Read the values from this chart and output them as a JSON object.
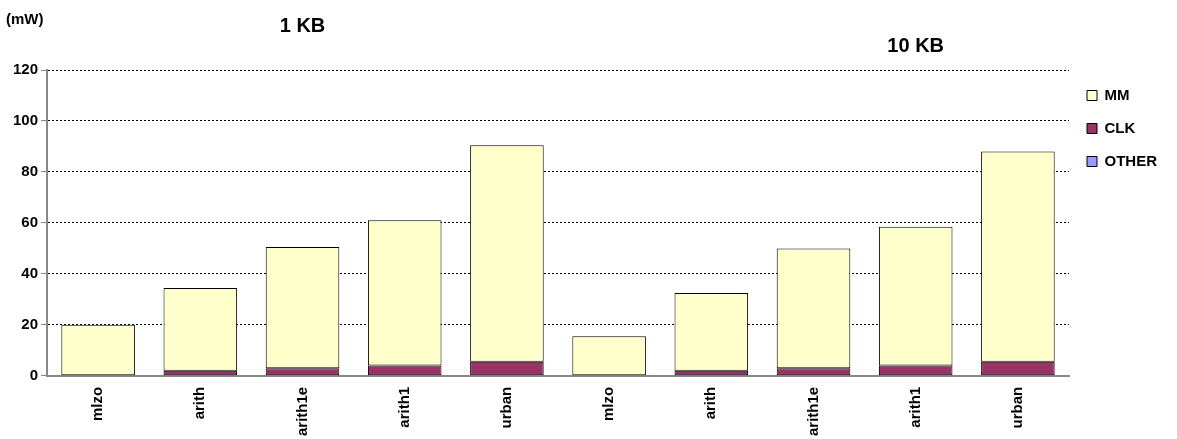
{
  "chart_data": {
    "type": "bar",
    "stacked": true,
    "ylabel": "(mW)",
    "annotations": [
      "1 KB",
      "10 KB"
    ],
    "categories": [
      "mlzo",
      "arith",
      "arith1e",
      "arith1",
      "urban",
      "mlzo",
      "arith",
      "arith1e",
      "arith1",
      "urban"
    ],
    "series": [
      {
        "name": "OTHER",
        "color": "#9999ff",
        "values": [
          null,
          null,
          null,
          null,
          null,
          null,
          null,
          null,
          null,
          null
        ]
      },
      {
        "name": "CLK",
        "color": "#993366",
        "values": [
          null,
          2,
          3,
          4,
          5.5,
          null,
          2,
          3,
          4,
          5.5
        ]
      },
      {
        "name": "MM",
        "color": "#ffffcc",
        "values": [
          20,
          32.5,
          47.5,
          57,
          85,
          15.5,
          30.5,
          47,
          54.5,
          82.5
        ]
      }
    ],
    "ylim": [
      0,
      120
    ],
    "yticks": [
      0,
      20,
      40,
      60,
      80,
      100,
      120
    ],
    "grid": "y",
    "legend": "top right"
  }
}
